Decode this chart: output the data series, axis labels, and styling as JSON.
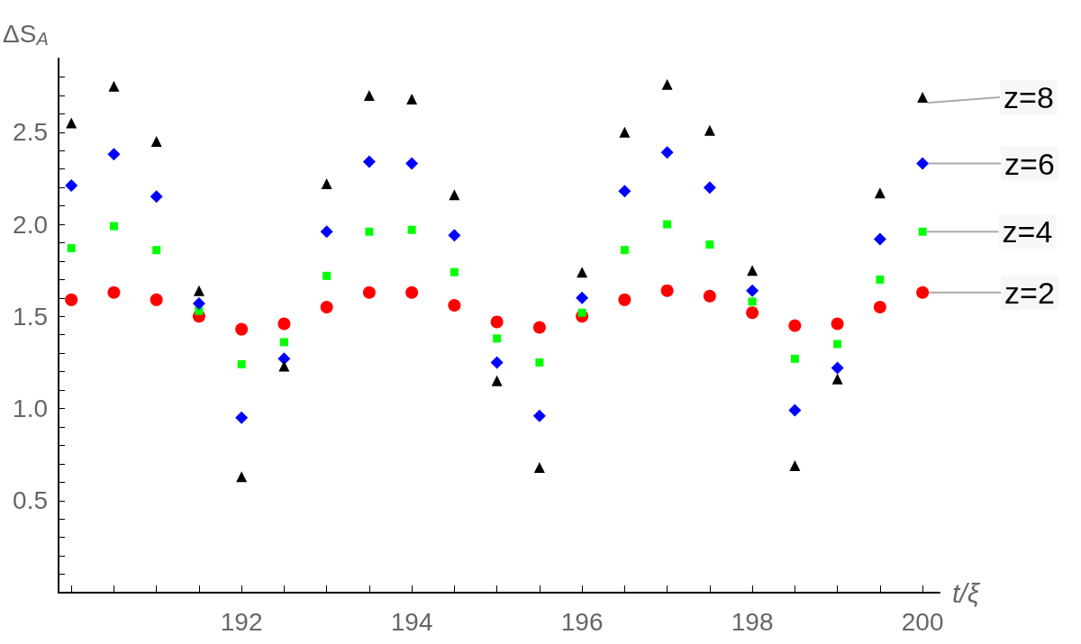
{
  "chart_data": {
    "type": "scatter",
    "xlabel": "t/ξ",
    "ylabel": "ΔS$_{A}$",
    "x": [
      190,
      190.5,
      191,
      191.5,
      192,
      192.5,
      193,
      193.5,
      194,
      194.5,
      195,
      195.5,
      196,
      196.5,
      197,
      197.5,
      198,
      198.5,
      199,
      199.5,
      200
    ],
    "series": [
      {
        "name": "z=8",
        "color": "#000000",
        "marker": "triangle",
        "values": [
          2.55,
          2.75,
          2.45,
          1.64,
          0.63,
          1.23,
          2.22,
          2.7,
          2.68,
          2.16,
          1.15,
          0.68,
          1.74,
          2.5,
          2.76,
          2.51,
          1.75,
          0.69,
          1.16,
          2.17,
          2.69
        ]
      },
      {
        "name": "z=6",
        "color": "#0000ff",
        "marker": "diamond",
        "values": [
          2.21,
          2.38,
          2.15,
          1.57,
          0.95,
          1.27,
          1.96,
          2.34,
          2.33,
          1.94,
          1.25,
          0.96,
          1.6,
          2.18,
          2.39,
          2.2,
          1.64,
          0.99,
          1.22,
          1.92,
          2.33
        ]
      },
      {
        "name": "z=4",
        "color": "#00ff00",
        "marker": "square",
        "values": [
          1.87,
          1.99,
          1.86,
          1.53,
          1.24,
          1.36,
          1.72,
          1.96,
          1.97,
          1.74,
          1.38,
          1.25,
          1.52,
          1.86,
          2.0,
          1.89,
          1.58,
          1.27,
          1.35,
          1.7,
          1.96
        ]
      },
      {
        "name": "z=2",
        "color": "#ff0000",
        "marker": "circle",
        "values": [
          1.59,
          1.63,
          1.59,
          1.5,
          1.43,
          1.46,
          1.55,
          1.63,
          1.63,
          1.56,
          1.47,
          1.44,
          1.5,
          1.59,
          1.64,
          1.61,
          1.52,
          1.45,
          1.46,
          1.55,
          1.63
        ]
      }
    ],
    "xlim": [
      189.85,
      200.2
    ],
    "xticks": [
      {
        "value": 190,
        "label": null
      },
      {
        "value": 190.5,
        "label": null
      },
      {
        "value": 191,
        "label": null
      },
      {
        "value": 191.5,
        "label": null
      },
      192,
      {
        "value": 192.5,
        "label": null
      },
      {
        "value": 193,
        "label": null
      },
      {
        "value": 193.5,
        "label": null
      },
      194,
      {
        "value": 194.5,
        "label": null
      },
      {
        "value": 195,
        "label": null
      },
      {
        "value": 195.5,
        "label": null
      },
      196,
      {
        "value": 196.5,
        "label": null
      },
      {
        "value": 197,
        "label": null
      },
      {
        "value": 197.5,
        "label": null
      },
      198,
      {
        "value": 198.5,
        "label": null
      },
      {
        "value": 199,
        "label": null
      },
      {
        "value": 199.5,
        "label": null
      },
      200
    ],
    "ylim": [
      0,
      2.9
    ],
    "yticks": [
      {
        "value": 0.1,
        "label": null
      },
      {
        "value": 0.2,
        "label": null
      },
      {
        "value": 0.3,
        "label": null
      },
      {
        "value": 0.4,
        "label": null
      },
      0.5,
      {
        "value": 0.6,
        "label": null
      },
      {
        "value": 0.7,
        "label": null
      },
      {
        "value": 0.8,
        "label": null
      },
      {
        "value": 0.9,
        "label": null
      },
      {
        "value": 1,
        "label": "1.0"
      },
      {
        "value": 1.1,
        "label": null
      },
      {
        "value": 1.2,
        "label": null
      },
      {
        "value": 1.3,
        "label": null
      },
      {
        "value": 1.4,
        "label": null
      },
      1.5,
      {
        "value": 1.6,
        "label": null
      },
      {
        "value": 1.7,
        "label": null
      },
      {
        "value": 1.8,
        "label": null
      },
      {
        "value": 1.9,
        "label": null
      },
      {
        "value": 2,
        "label": "2.0"
      },
      {
        "value": 2.1,
        "label": null
      },
      {
        "value": 2.2,
        "label": null
      },
      {
        "value": 2.3,
        "label": null
      },
      {
        "value": 2.4,
        "label": null
      },
      2.5,
      {
        "value": 2.6,
        "label": null
      },
      {
        "value": 2.7,
        "label": null
      },
      {
        "value": 2.8,
        "label": null
      }
    ],
    "grid": false
  }
}
